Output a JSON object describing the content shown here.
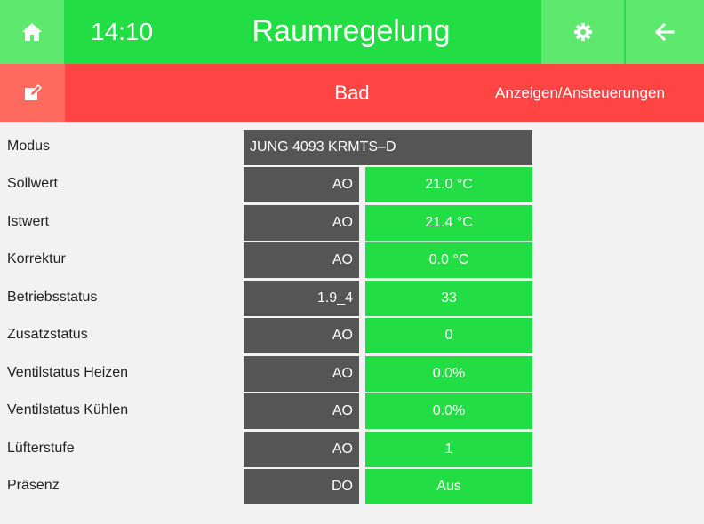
{
  "header": {
    "time": "14:10",
    "title": "Raumregelung",
    "home_icon": "home-icon",
    "settings_icon": "gear-icon",
    "back_icon": "arrow-left-icon"
  },
  "subheader": {
    "room": "Bad",
    "link": "Anzeigen/Ansteuerungen",
    "edit_icon": "edit-icon"
  },
  "colors": {
    "accent_green": "#22dd44",
    "light_green": "#5ce96e",
    "accent_red": "#ff4444",
    "light_red": "#ff6a5f",
    "dark_cell": "#555555"
  },
  "device": {
    "label": "Modus",
    "value": "JUNG 4093 KRMTS–D"
  },
  "rows": [
    {
      "label": "Sollwert",
      "type": "AO",
      "value": "21.0 °C"
    },
    {
      "label": "Istwert",
      "type": "AO",
      "value": "21.4 °C"
    },
    {
      "label": "Korrektur",
      "type": "AO",
      "value": "0.0 °C"
    },
    {
      "label": "Betriebsstatus",
      "type": "1.9_4",
      "value": "33"
    },
    {
      "label": "Zusatzstatus",
      "type": "AO",
      "value": "0"
    },
    {
      "label": "Ventilstatus Heizen",
      "type": "AO",
      "value": "0.0%"
    },
    {
      "label": "Ventilstatus Kühlen",
      "type": "AO",
      "value": "0.0%"
    },
    {
      "label": "Lüfterstufe",
      "type": "AO",
      "value": "1"
    },
    {
      "label": "Präsenz",
      "type": "DO",
      "value": "Aus"
    }
  ]
}
